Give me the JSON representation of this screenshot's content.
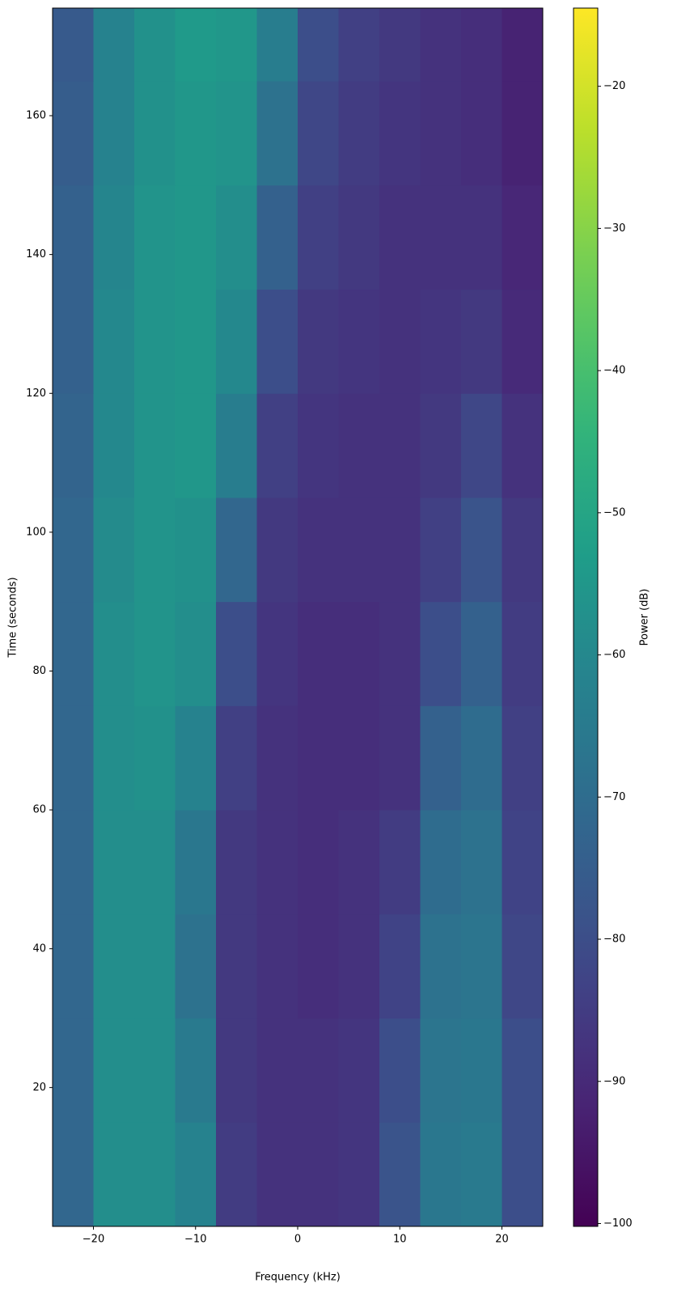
{
  "chart_data": {
    "type": "heatmap",
    "xlabel": "Frequency (kHz)",
    "ylabel": "Time (seconds)",
    "colorbar_label": "Power (dB)",
    "colormap": "viridis",
    "x_edges": [
      -24,
      -20,
      -16,
      -12,
      -8,
      -4,
      0,
      4,
      8,
      12,
      16,
      20,
      24
    ],
    "y_edges": [
      0,
      15,
      30,
      45,
      60,
      75,
      90,
      105,
      120,
      135,
      150,
      165,
      175.5
    ],
    "z": [
      [
        -72,
        -58,
        -58,
        -62,
        -85,
        -88,
        -88,
        -87,
        -78,
        -66,
        -65,
        -80
      ],
      [
        -72,
        -58,
        -58,
        -65,
        -86,
        -88,
        -88,
        -87,
        -80,
        -67,
        -66,
        -80
      ],
      [
        -72,
        -58,
        -58,
        -68,
        -86,
        -88,
        -89,
        -88,
        -83,
        -68,
        -67,
        -82
      ],
      [
        -72,
        -58,
        -58,
        -66,
        -86,
        -88,
        -89,
        -88,
        -85,
        -70,
        -68,
        -83
      ],
      [
        -72,
        -58,
        -57,
        -62,
        -84,
        -88,
        -89,
        -89,
        -88,
        -74,
        -70,
        -84
      ],
      [
        -72,
        -58,
        -56,
        -58,
        -80,
        -87,
        -89,
        -89,
        -88,
        -80,
        -74,
        -85
      ],
      [
        -72,
        -59,
        -56,
        -57,
        -72,
        -86,
        -88,
        -88,
        -88,
        -84,
        -78,
        -86
      ],
      [
        -73,
        -60,
        -56,
        -55,
        -64,
        -84,
        -87,
        -88,
        -88,
        -86,
        -82,
        -88
      ],
      [
        -74,
        -60,
        -56,
        -55,
        -60,
        -80,
        -86,
        -87,
        -88,
        -87,
        -86,
        -90
      ],
      [
        -74,
        -61,
        -56,
        -55,
        -58,
        -74,
        -84,
        -86,
        -88,
        -88,
        -88,
        -91
      ],
      [
        -75,
        -62,
        -57,
        -55,
        -56,
        -68,
        -82,
        -85,
        -87,
        -88,
        -89,
        -92
      ],
      [
        -76,
        -62,
        -57,
        -54,
        -55,
        -64,
        -80,
        -84,
        -86,
        -88,
        -89,
        -92
      ]
    ],
    "xlim": [
      -24,
      24
    ],
    "ylim": [
      0,
      175.5
    ],
    "clim": [
      -100.2,
      -14.5
    ],
    "xticks": [
      {
        "value": -20,
        "label": "−20"
      },
      {
        "value": -10,
        "label": "−10"
      },
      0,
      10,
      20
    ],
    "yticks": [
      20,
      40,
      60,
      80,
      100,
      120,
      140,
      160
    ],
    "cticks": [
      {
        "value": -20,
        "label": "−20"
      },
      {
        "value": -30,
        "label": "−30"
      },
      {
        "value": -40,
        "label": "−40"
      },
      {
        "value": -50,
        "label": "−50"
      },
      {
        "value": -60,
        "label": "−60"
      },
      {
        "value": -70,
        "label": "−70"
      },
      {
        "value": -80,
        "label": "−80"
      },
      {
        "value": -90,
        "label": "−90"
      },
      {
        "value": -100,
        "label": "−100"
      }
    ]
  }
}
